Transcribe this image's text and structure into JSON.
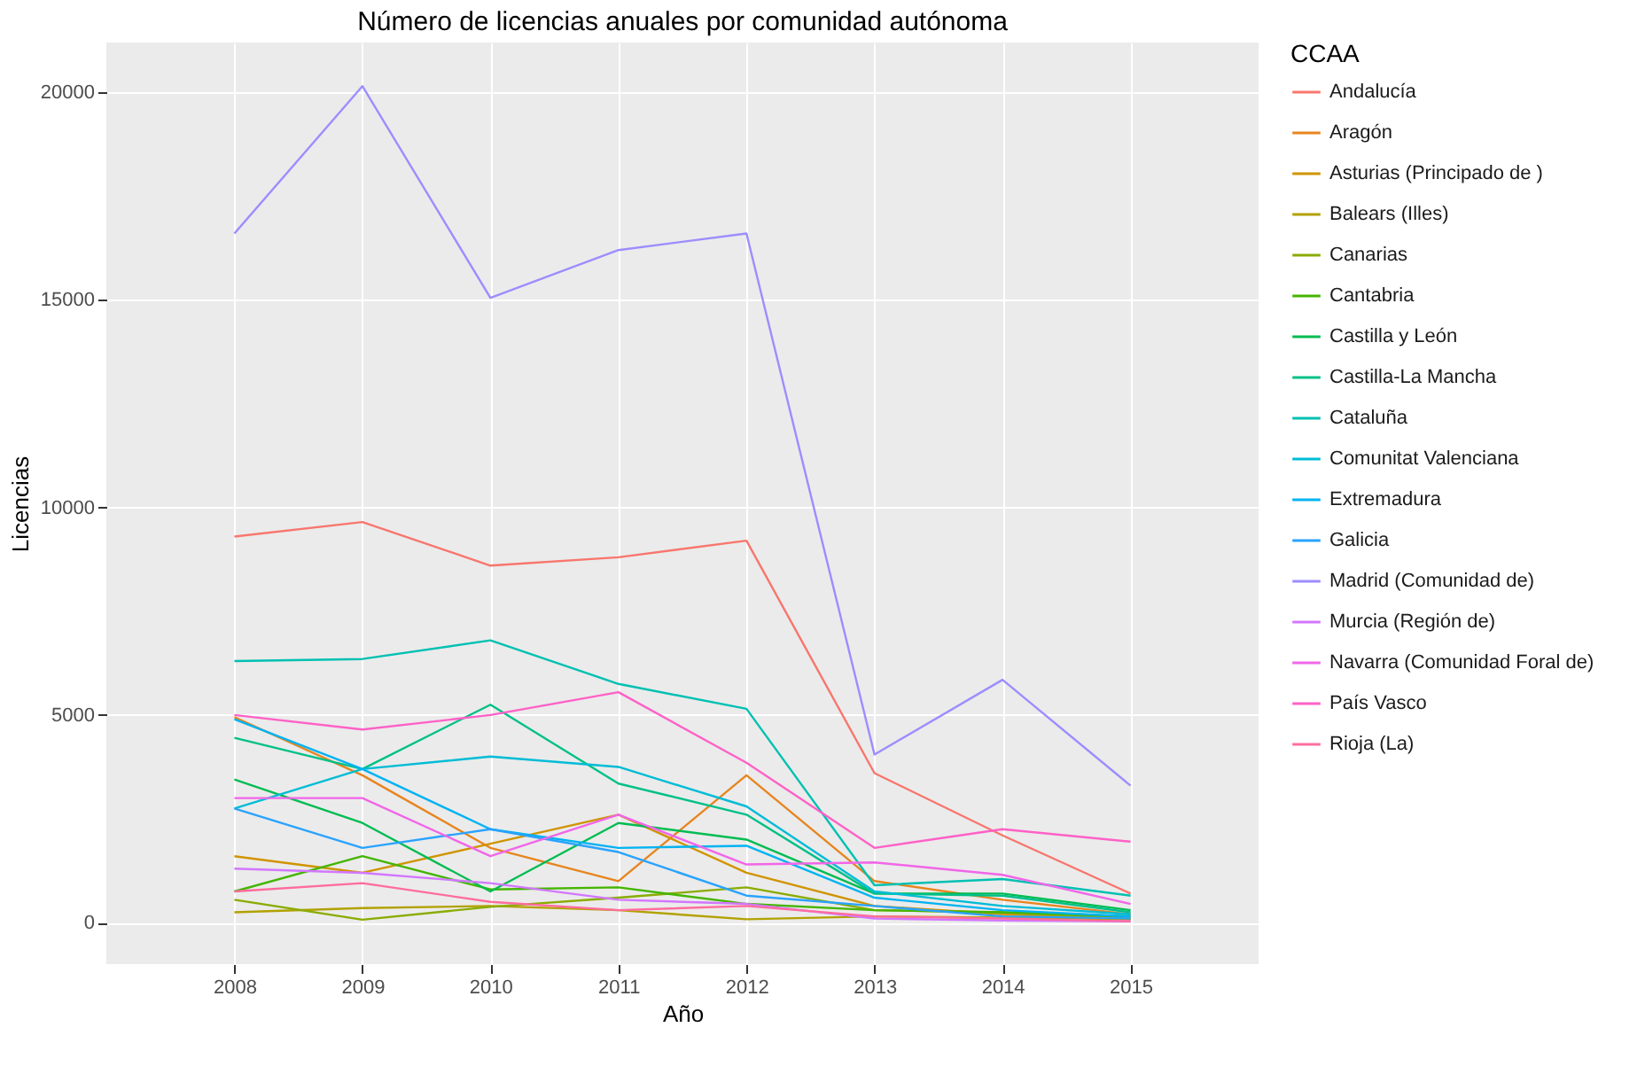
{
  "chart_data": {
    "type": "line",
    "title": "Número de licencias anuales por comunidad autónoma",
    "xlabel": "Año",
    "ylabel": "Licencias",
    "legend_title": "CCAA",
    "legend": "right",
    "grid": true,
    "categories": [
      "2008",
      "2009",
      "2010",
      "2011",
      "2012",
      "2013",
      "2014",
      "2015"
    ],
    "ylim": [
      -1000,
      21200
    ],
    "yticks": [
      0,
      5000,
      10000,
      15000,
      20000
    ],
    "series": [
      {
        "name": "Andalucía",
        "color": "#f8766d",
        "values": [
          9300,
          9650,
          8600,
          8800,
          9200,
          3600,
          2100,
          700
        ]
      },
      {
        "name": "Aragón",
        "color": "#e7851e",
        "values": [
          4950,
          3550,
          1800,
          1000,
          3550,
          1000,
          550,
          200
        ]
      },
      {
        "name": "Asturias (Principado de )",
        "color": "#d09400",
        "values": [
          1600,
          1200,
          1900,
          2600,
          1200,
          400,
          200,
          80
        ]
      },
      {
        "name": "Balears (Illes)",
        "color": "#b2a100",
        "values": [
          250,
          350,
          400,
          300,
          80,
          150,
          120,
          80
        ]
      },
      {
        "name": "Canarias",
        "color": "#89ac00",
        "values": [
          550,
          70,
          380,
          600,
          850,
          300,
          250,
          100
        ]
      },
      {
        "name": "Cantabria",
        "color": "#45b500",
        "values": [
          750,
          1600,
          800,
          850,
          450,
          300,
          250,
          150
        ]
      },
      {
        "name": "Castilla y León",
        "color": "#00bc51",
        "values": [
          3450,
          2400,
          750,
          2400,
          2000,
          700,
          700,
          300
        ]
      },
      {
        "name": "Castilla-La Mancha",
        "color": "#00c087",
        "values": [
          4450,
          3700,
          5250,
          3350,
          2600,
          700,
          650,
          250
        ]
      },
      {
        "name": "Cataluña",
        "color": "#00c0b2",
        "values": [
          6300,
          6350,
          6800,
          5750,
          5150,
          900,
          1050,
          650
        ]
      },
      {
        "name": "Comunitat Valenciana",
        "color": "#00bcd6",
        "values": [
          2750,
          3700,
          4000,
          3750,
          2800,
          750,
          400,
          200
        ]
      },
      {
        "name": "Extremadura",
        "color": "#00b3f2",
        "values": [
          4900,
          3700,
          2250,
          1800,
          1850,
          600,
          300,
          150
        ]
      },
      {
        "name": "Galicia",
        "color": "#29a3ff",
        "values": [
          2750,
          1800,
          2250,
          1700,
          650,
          400,
          150,
          100
        ]
      },
      {
        "name": "Madrid (Comunidad de)",
        "color": "#9c8dff",
        "values": [
          16600,
          20150,
          15050,
          16200,
          16600,
          4050,
          5850,
          3300
        ]
      },
      {
        "name": "Murcia (Región de)",
        "color": "#d277ff",
        "values": [
          1300,
          1200,
          950,
          550,
          450,
          100,
          50,
          30
        ]
      },
      {
        "name": "Navarra (Comunidad Foral de)",
        "color": "#f166e8",
        "values": [
          3000,
          3000,
          1600,
          2600,
          1400,
          1450,
          1150,
          450
        ]
      },
      {
        "name": "País Vasco",
        "color": "#ff61c7",
        "values": [
          5000,
          4650,
          5000,
          5550,
          3850,
          1800,
          2250,
          1950
        ]
      },
      {
        "name": "Rioja (La)",
        "color": "#ff6c9e",
        "values": [
          750,
          950,
          500,
          300,
          400,
          150,
          100,
          30
        ]
      }
    ]
  }
}
